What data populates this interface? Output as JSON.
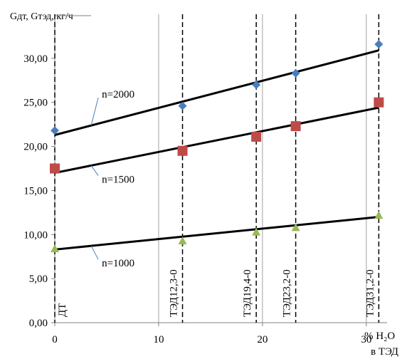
{
  "chart_data": {
    "type": "scatter",
    "y_label": "Gдт, Gтэд, кг/ч",
    "x_label": [
      "% H₂O",
      "в ТЭД"
    ],
    "x": [
      0,
      12.3,
      19.4,
      23.2,
      31.2
    ],
    "series": [
      {
        "name": "n=2000",
        "color": "#4a7ebb",
        "marker": "diamond",
        "values": [
          21.8,
          24.6,
          27.0,
          28.3,
          31.6
        ],
        "trendline": [
          21.3,
          30.9
        ]
      },
      {
        "name": "n=1500",
        "color": "#be4b48",
        "marker": "square",
        "values": [
          17.5,
          19.5,
          21.1,
          22.3,
          25.0
        ],
        "trendline": [
          17.0,
          24.4
        ]
      },
      {
        "name": "n=1000",
        "color": "#98b954",
        "marker": "triangle",
        "values": [
          8.4,
          9.3,
          10.3,
          10.8,
          12.2
        ],
        "trendline": [
          8.3,
          12.0
        ]
      }
    ],
    "fuels": [
      "ДТ",
      "ТЭД12,3-0",
      "ТЭД19,4-0",
      "ТЭД23,2-0",
      "ТЭД31,2-0"
    ],
    "xlim": [
      0,
      32
    ],
    "ylim": [
      0,
      35
    ],
    "xticks": [
      0,
      10,
      20,
      30
    ],
    "yticks": [
      {
        "value": 0,
        "label": "0,00"
      },
      {
        "value": 5,
        "label": "5,00"
      },
      {
        "value": 10,
        "label": "10,00"
      },
      {
        "value": 15,
        "label": "15,00"
      },
      {
        "value": 20,
        "label": "20,00"
      },
      {
        "value": 25,
        "label": "25,00"
      },
      {
        "value": 30,
        "label": "30,00"
      }
    ],
    "grid": true
  }
}
